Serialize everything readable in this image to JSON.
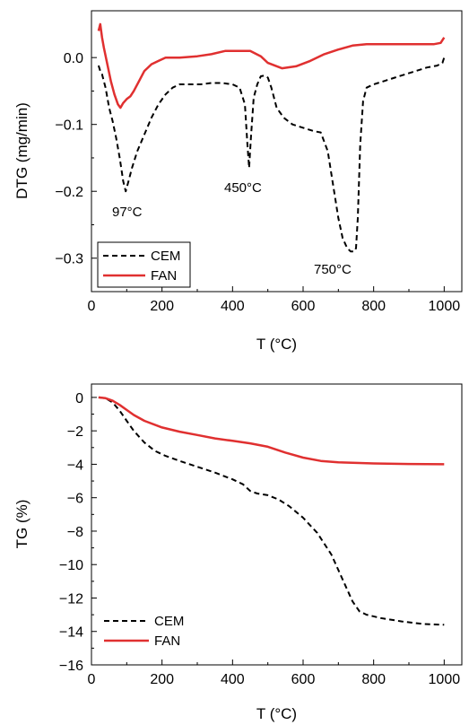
{
  "chart_data": [
    {
      "type": "line",
      "xlabel": "T (°C)",
      "ylabel": "DTG (mg/min)",
      "xlim": [
        0,
        1050
      ],
      "ylim": [
        -0.35,
        0.07
      ],
      "xticks": [
        0,
        200,
        400,
        600,
        800,
        1000
      ],
      "xtick_labels": [
        "0",
        "200",
        "400",
        "600",
        "800",
        "1000"
      ],
      "yticks": [
        0.0,
        -0.1,
        -0.2,
        -0.3
      ],
      "ytick_labels": [
        "0.0",
        "−0.1",
        "−0.2",
        "−0.3"
      ],
      "grid": false,
      "legend": "bottom-left",
      "annotations": [
        {
          "text": "97°C",
          "x": 97,
          "y": -0.222
        },
        {
          "text": "450°C",
          "x": 450,
          "y": -0.195
        },
        {
          "text": "750°C",
          "x": 750,
          "y": -0.315
        }
      ],
      "series": [
        {
          "name": "CEM",
          "color": "#000000",
          "dash": "dashed",
          "x": [
            20,
            25,
            30,
            40,
            50,
            60,
            70,
            80,
            90,
            97,
            105,
            115,
            130,
            150,
            170,
            190,
            210,
            230,
            250,
            280,
            310,
            340,
            370,
            400,
            420,
            435,
            442,
            447,
            452,
            460,
            470,
            480,
            490,
            500,
            510,
            525,
            545,
            570,
            600,
            630,
            650,
            670,
            685,
            700,
            712,
            725,
            735,
            745,
            750,
            755,
            762,
            770,
            780,
            800,
            830,
            860,
            890,
            920,
            950,
            980,
            995,
            1000
          ],
          "y": [
            -0.012,
            -0.02,
            -0.025,
            -0.045,
            -0.075,
            -0.095,
            -0.12,
            -0.15,
            -0.185,
            -0.2,
            -0.185,
            -0.165,
            -0.14,
            -0.115,
            -0.09,
            -0.07,
            -0.055,
            -0.045,
            -0.04,
            -0.04,
            -0.04,
            -0.038,
            -0.038,
            -0.04,
            -0.045,
            -0.07,
            -0.13,
            -0.165,
            -0.12,
            -0.06,
            -0.04,
            -0.028,
            -0.027,
            -0.03,
            -0.045,
            -0.075,
            -0.09,
            -0.1,
            -0.105,
            -0.11,
            -0.112,
            -0.14,
            -0.19,
            -0.24,
            -0.27,
            -0.285,
            -0.29,
            -0.29,
            -0.285,
            -0.24,
            -0.13,
            -0.065,
            -0.045,
            -0.04,
            -0.035,
            -0.03,
            -0.025,
            -0.02,
            -0.015,
            -0.012,
            -0.008,
            0.0
          ]
        },
        {
          "name": "FAN",
          "color": "#e03030",
          "dash": "solid",
          "x": [
            20,
            25,
            30,
            35,
            45,
            55,
            65,
            75,
            82,
            90,
            100,
            110,
            120,
            135,
            150,
            170,
            190,
            210,
            250,
            300,
            340,
            380,
            420,
            450,
            480,
            500,
            520,
            540,
            580,
            620,
            660,
            700,
            740,
            780,
            820,
            860,
            900,
            940,
            970,
            990,
            1000
          ],
          "y": [
            0.04,
            0.05,
            0.03,
            0.015,
            -0.01,
            -0.035,
            -0.055,
            -0.07,
            -0.075,
            -0.068,
            -0.062,
            -0.058,
            -0.05,
            -0.035,
            -0.02,
            -0.01,
            -0.005,
            0.0,
            0.0,
            0.002,
            0.005,
            0.01,
            0.01,
            0.01,
            0.002,
            -0.008,
            -0.012,
            -0.016,
            -0.013,
            -0.005,
            0.005,
            0.012,
            0.018,
            0.02,
            0.02,
            0.02,
            0.02,
            0.02,
            0.02,
            0.022,
            0.03
          ]
        }
      ]
    },
    {
      "type": "line",
      "xlabel": "T (°C)",
      "ylabel": "TG (%)",
      "xlim": [
        0,
        1050
      ],
      "ylim": [
        -16,
        0.8
      ],
      "xticks": [
        0,
        200,
        400,
        600,
        800,
        1000
      ],
      "xtick_labels": [
        "0",
        "200",
        "400",
        "600",
        "800",
        "1000"
      ],
      "yticks": [
        0,
        -2,
        -4,
        -6,
        -8,
        -10,
        -12,
        -14,
        -16
      ],
      "ytick_labels": [
        "0",
        "−2",
        "−4",
        "−6",
        "−8",
        "−10",
        "−12",
        "−14",
        "−16"
      ],
      "grid": false,
      "legend": "bottom-left",
      "series": [
        {
          "name": "CEM",
          "color": "#000000",
          "dash": "dashed",
          "x": [
            20,
            40,
            60,
            80,
            100,
            120,
            150,
            180,
            210,
            250,
            300,
            350,
            400,
            430,
            450,
            470,
            500,
            530,
            560,
            600,
            640,
            680,
            710,
            740,
            760,
            780,
            820,
            880,
            940,
            1000
          ],
          "y": [
            0.0,
            -0.05,
            -0.3,
            -0.8,
            -1.4,
            -2.0,
            -2.7,
            -3.2,
            -3.5,
            -3.8,
            -4.15,
            -4.5,
            -4.9,
            -5.2,
            -5.6,
            -5.75,
            -5.85,
            -6.1,
            -6.5,
            -7.2,
            -8.1,
            -9.4,
            -10.8,
            -12.2,
            -12.8,
            -13.0,
            -13.2,
            -13.4,
            -13.55,
            -13.6
          ]
        },
        {
          "name": "FAN",
          "color": "#e03030",
          "dash": "solid",
          "x": [
            20,
            40,
            60,
            80,
            100,
            120,
            150,
            200,
            250,
            300,
            350,
            400,
            450,
            500,
            550,
            600,
            650,
            700,
            750,
            800,
            900,
            1000
          ],
          "y": [
            0.0,
            -0.05,
            -0.2,
            -0.45,
            -0.75,
            -1.05,
            -1.4,
            -1.8,
            -2.05,
            -2.25,
            -2.45,
            -2.6,
            -2.75,
            -2.95,
            -3.3,
            -3.6,
            -3.8,
            -3.88,
            -3.92,
            -3.95,
            -3.98,
            -4.0
          ]
        }
      ]
    }
  ]
}
